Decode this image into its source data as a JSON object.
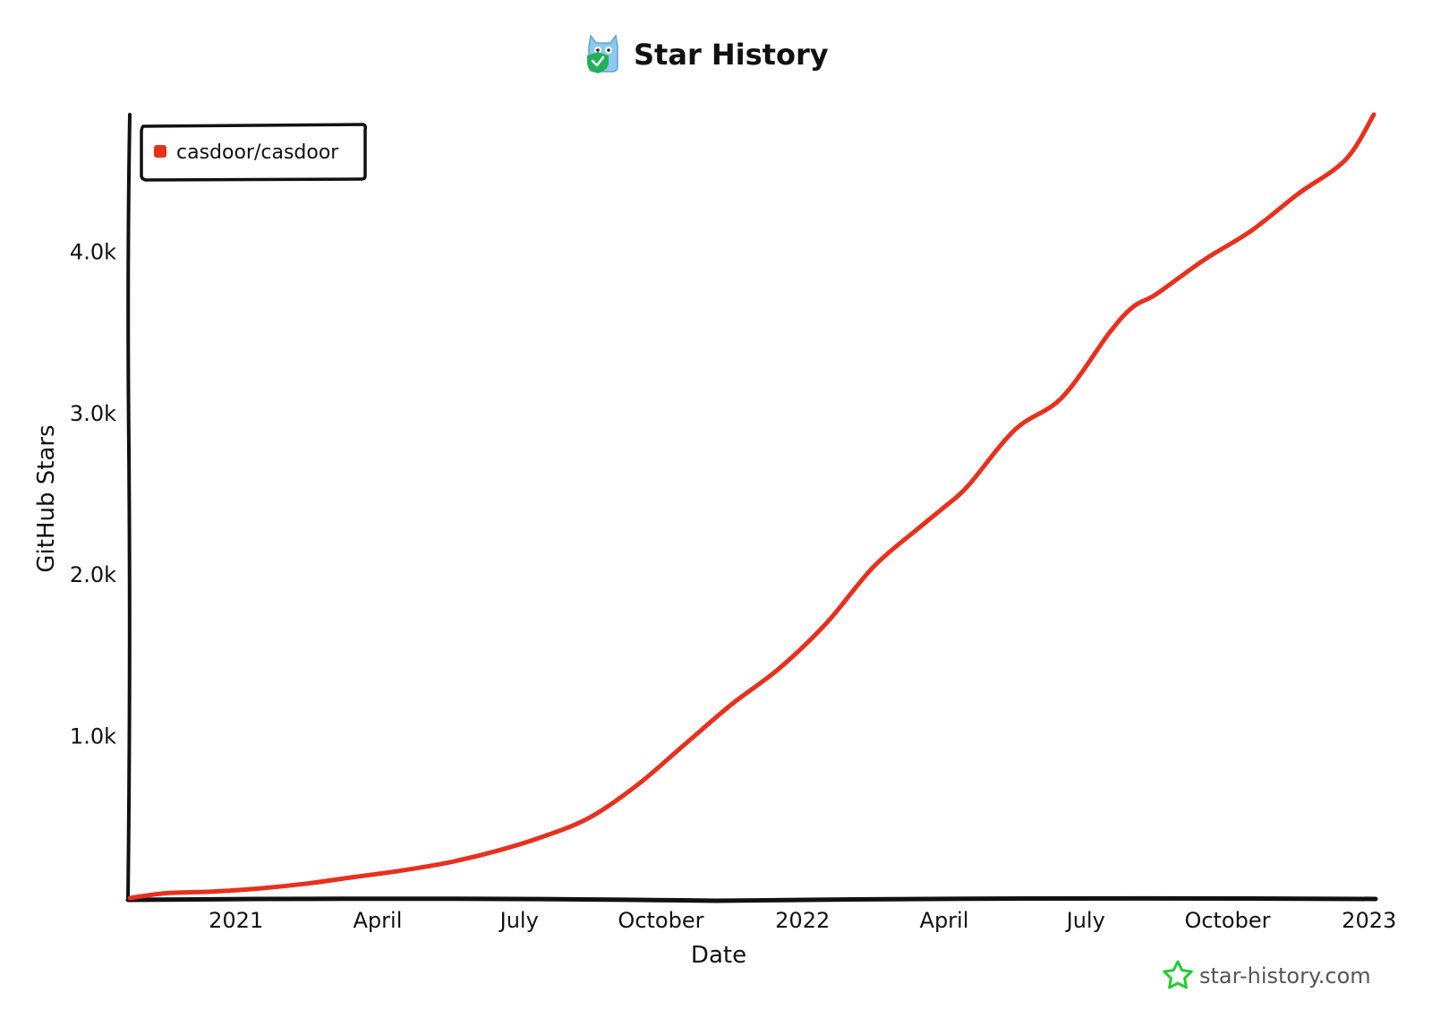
{
  "chart_data": {
    "type": "line",
    "title": "Star History",
    "xlabel": "Date",
    "ylabel": "GitHub Stars",
    "x_tick_labels": [
      "2021",
      "April",
      "July",
      "October",
      "2022",
      "April",
      "July",
      "October",
      "2023"
    ],
    "x_tick_months": [
      2.5,
      5.5,
      8.5,
      11.5,
      14.5,
      17.5,
      20.5,
      23.5,
      26.5
    ],
    "xlim_months": [
      0.25,
      26.6
    ],
    "x_unit": "months since 2020-11-01 (x_tick_months align to tick labels)",
    "y_ticks": [
      1000,
      2000,
      3000,
      4000
    ],
    "y_tick_labels": [
      "1.0k",
      "2.0k",
      "3.0k",
      "4.0k"
    ],
    "ylim": [
      0,
      4850
    ],
    "legend_position": "top-left",
    "series": [
      {
        "name": "casdoor/casdoor",
        "color": "#e8301c",
        "x": [
          0.25,
          1.0,
          2.0,
          3.0,
          4.0,
          5.0,
          6.0,
          7.0,
          8.0,
          9.0,
          10.0,
          11.0,
          12.0,
          13.0,
          14.0,
          15.0,
          16.0,
          17.0,
          17.5,
          18.0,
          19.0,
          20.0,
          21.0,
          21.5,
          22.0,
          23.0,
          24.0,
          25.0,
          26.0,
          26.6
        ],
        "values": [
          0,
          30,
          40,
          60,
          90,
          130,
          170,
          220,
          290,
          380,
          500,
          700,
          950,
          1200,
          1420,
          1700,
          2050,
          2300,
          2420,
          2550,
          2900,
          3100,
          3500,
          3660,
          3740,
          3950,
          4130,
          4360,
          4570,
          4850
        ]
      }
    ]
  },
  "watermark": {
    "text": "star-history.com",
    "icon": "star-icon"
  },
  "logo": {
    "icon": "owl-logo-icon"
  },
  "colors": {
    "accent": "#e8301c",
    "axis": "#111111",
    "watermark_star": "#22cc33"
  }
}
